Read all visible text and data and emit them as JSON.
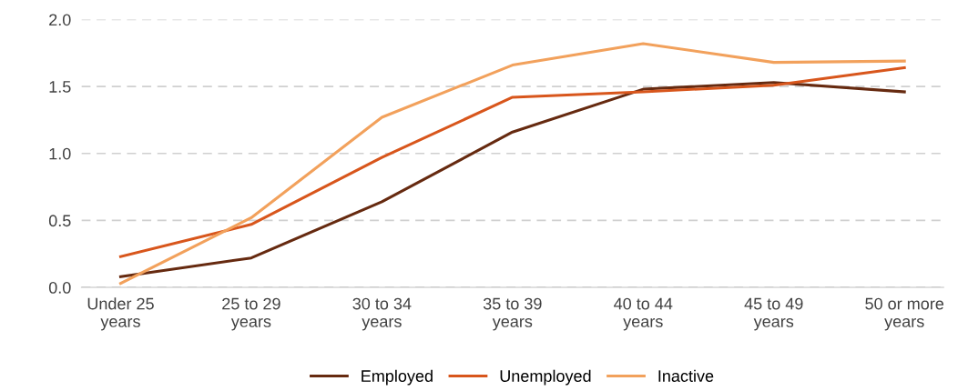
{
  "chart_data": {
    "type": "line",
    "categories": [
      "Under 25\nyears",
      "25 to 29\nyears",
      "30 to 34\nyears",
      "35 to 39\nyears",
      "40 to 44\nyears",
      "45 to 49\nyears",
      "50 or more\nyears"
    ],
    "series": [
      {
        "name": "Employed",
        "color": "#662a10",
        "values": [
          0.08,
          0.22,
          0.64,
          1.16,
          1.48,
          1.53,
          1.46
        ]
      },
      {
        "name": "Unemployed",
        "color": "#d8561c",
        "values": [
          0.23,
          0.47,
          0.97,
          1.42,
          1.46,
          1.51,
          1.64
        ]
      },
      {
        "name": "Inactive",
        "color": "#f2a15c",
        "values": [
          0.03,
          0.52,
          1.27,
          1.66,
          1.82,
          1.68,
          1.69
        ]
      }
    ],
    "ylim": [
      0,
      2.0
    ],
    "yticks": [
      {
        "value": 0,
        "label": "0.0"
      },
      {
        "value": 0.5,
        "label": "0.5"
      },
      {
        "value": 1.0,
        "label": "1.0"
      },
      {
        "value": 1.5,
        "label": "1.5"
      },
      {
        "value": 2.0,
        "label": "2.0"
      }
    ],
    "grid": "y",
    "legend": "bottom",
    "marker": "none",
    "line_style": "solid"
  }
}
